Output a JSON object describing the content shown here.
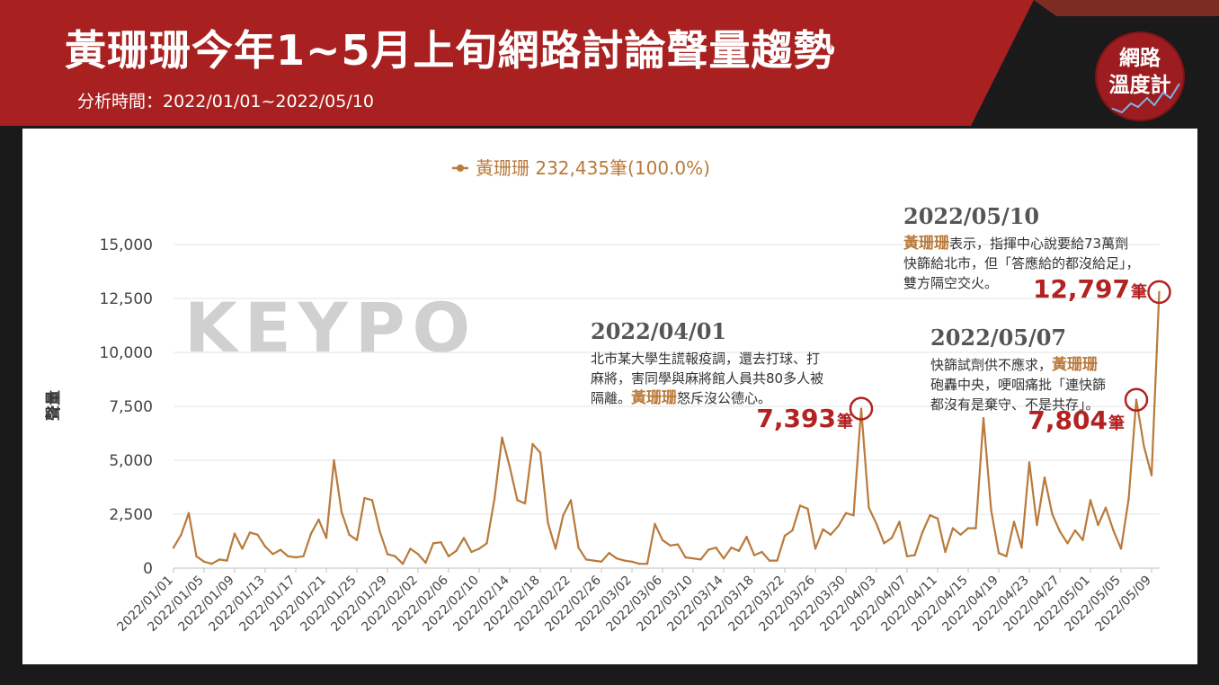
{
  "header": {
    "title": "黃珊珊今年1~5月上旬網路討論聲量趨勢",
    "period": "分析時間：2022/01/01~2022/05/10",
    "badge_line1": "網路",
    "badge_line2": "溫度計"
  },
  "watermark": "KEYPO",
  "colors": {
    "header_red": "#a8201f",
    "series": "#b97a3b",
    "highlight": "#b22222",
    "annot_date": "#555555"
  },
  "chart_data": {
    "type": "line",
    "legend": {
      "label": "黃珊珊 232,435筆(100.0%)",
      "position": "top-center"
    },
    "ylabel": "聲量",
    "xlabel": "",
    "ylim": [
      0,
      15000
    ],
    "yticks": [
      "0",
      "2,500",
      "5,000",
      "7,500",
      "10,000",
      "12,500",
      "15,000"
    ],
    "start_date": "2022/01/01",
    "xtick_labels": [
      "2022/01/01",
      "2022/01/05",
      "2022/01/09",
      "2022/01/13",
      "2022/01/17",
      "2022/01/21",
      "2022/01/25",
      "2022/01/29",
      "2022/02/02",
      "2022/02/06",
      "2022/02/10",
      "2022/02/14",
      "2022/02/18",
      "2022/02/22",
      "2022/02/26",
      "2022/03/02",
      "2022/03/06",
      "2022/03/10",
      "2022/03/14",
      "2022/03/18",
      "2022/03/22",
      "2022/03/26",
      "2022/03/30",
      "2022/04/03",
      "2022/04/07",
      "2022/04/11",
      "2022/04/15",
      "2022/04/19",
      "2022/04/23",
      "2022/04/27",
      "2022/05/01",
      "2022/05/05",
      "2022/05/09"
    ],
    "series": [
      {
        "name": "黃珊珊",
        "values": [
          950,
          1550,
          2550,
          550,
          300,
          200,
          400,
          350,
          1600,
          900,
          1650,
          1550,
          1000,
          650,
          850,
          550,
          500,
          550,
          1600,
          2250,
          1400,
          5000,
          2600,
          1550,
          1300,
          3250,
          3150,
          1700,
          650,
          550,
          200,
          900,
          650,
          250,
          1150,
          1200,
          550,
          800,
          1400,
          750,
          900,
          1150,
          3200,
          6050,
          4700,
          3150,
          3000,
          5750,
          5350,
          2100,
          900,
          2450,
          3150,
          950,
          400,
          350,
          300,
          700,
          450,
          350,
          300,
          200,
          200,
          2050,
          1300,
          1050,
          1100,
          500,
          450,
          400,
          850,
          950,
          450,
          950,
          800,
          1450,
          600,
          750,
          350,
          350,
          1500,
          1750,
          2900,
          2750,
          900,
          1800,
          1550,
          1950,
          2550,
          2450,
          7393,
          2800,
          2050,
          1150,
          1400,
          2150,
          550,
          600,
          1650,
          2450,
          2300,
          750,
          1850,
          1550,
          1850,
          1850,
          6950,
          2700,
          700,
          550,
          2150,
          950,
          4900,
          2000,
          4200,
          2500,
          1700,
          1150,
          1750,
          1300,
          3150,
          2000,
          2800,
          1750,
          900,
          3200,
          7804,
          5650,
          4300,
          12797
        ]
      }
    ],
    "annotations": [
      {
        "date": "2022/04/01",
        "lines": [
          "北市某大學生謊報疫調，還去打球、打",
          "麻將，害同學與麻將館人員共80多人被",
          "隔離。黃珊珊怒斥沒公德心。"
        ],
        "value_label": "7,393",
        "unit": "筆"
      },
      {
        "date": "2022/05/07",
        "lines": [
          "快篩試劑供不應求，黃珊珊",
          "砲轟中央，哽咽痛批「連快篩",
          "都沒有是棄守、不是共存」。"
        ],
        "value_label": "7,804",
        "unit": "筆"
      },
      {
        "date": "2022/05/10",
        "lines": [
          "黃珊珊表示，指揮中心說要給73萬劑",
          "快篩給北市，但「答應給的都沒給足」，",
          "雙方隔空交火。"
        ],
        "value_label": "12,797",
        "unit": "筆"
      }
    ]
  }
}
